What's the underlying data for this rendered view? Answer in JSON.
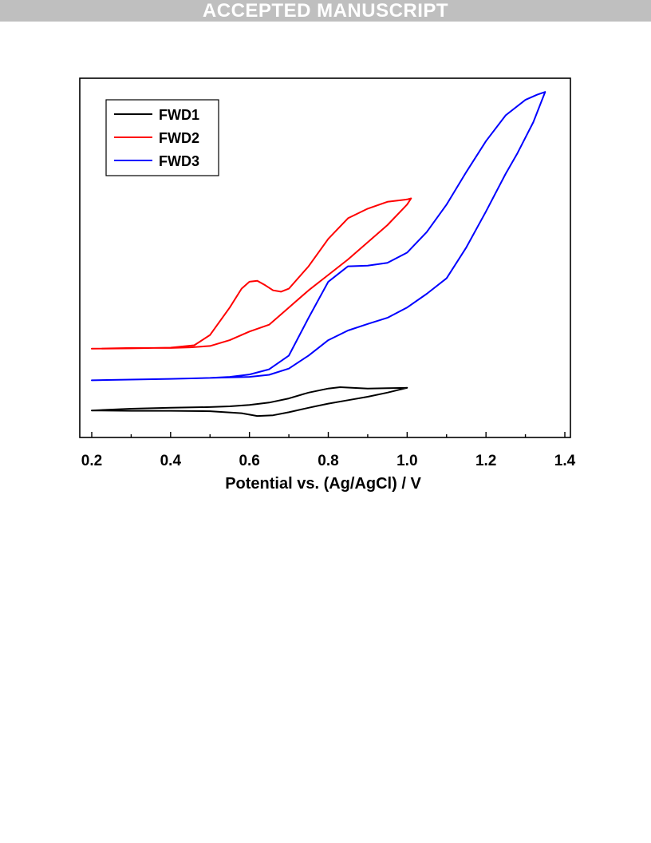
{
  "banner": {
    "text": "ACCEPTED MANUSCRIPT"
  },
  "chart_data": {
    "type": "line",
    "title": "",
    "xlabel": "Potential vs. (Ag/AgCl) / V",
    "ylabel": "",
    "xlim": [
      0.2,
      1.4
    ],
    "ylim": [
      0,
      100
    ],
    "xticks": [
      "0.2",
      "0.4",
      "0.6",
      "0.8",
      "1.0",
      "1.2",
      "1.4"
    ],
    "y_axis_ticks_labeled": false,
    "grid": false,
    "legend_position": "top-left",
    "series": [
      {
        "name": "FWD1",
        "color": "#000000",
        "x": [
          0.2,
          0.3,
          0.4,
          0.5,
          0.55,
          0.6,
          0.65,
          0.7,
          0.75,
          0.8,
          0.83,
          0.86,
          0.9,
          0.95,
          1.0,
          0.95,
          0.9,
          0.85,
          0.8,
          0.75,
          0.7,
          0.66,
          0.62,
          0.58,
          0.5,
          0.4,
          0.3,
          0.2
        ],
        "y": [
          6.0,
          6.5,
          6.8,
          7.0,
          7.2,
          7.6,
          8.3,
          9.5,
          11.2,
          12.4,
          12.8,
          12.6,
          12.4,
          12.5,
          12.6,
          11.2,
          10.0,
          9.0,
          8.0,
          6.8,
          5.5,
          4.6,
          4.4,
          5.2,
          5.8,
          5.9,
          5.9,
          6.0
        ]
      },
      {
        "name": "FWD2",
        "color": "#ff0000",
        "x": [
          0.2,
          0.3,
          0.4,
          0.46,
          0.5,
          0.55,
          0.58,
          0.6,
          0.62,
          0.64,
          0.66,
          0.68,
          0.7,
          0.75,
          0.8,
          0.85,
          0.9,
          0.95,
          1.0,
          1.01,
          1.0,
          0.95,
          0.9,
          0.85,
          0.8,
          0.75,
          0.7,
          0.65,
          0.6,
          0.55,
          0.5,
          0.45,
          0.4,
          0.3,
          0.2
        ],
        "y": [
          24.0,
          24.1,
          24.3,
          25.0,
          28.0,
          36.0,
          41.5,
          43.5,
          43.8,
          42.5,
          41.0,
          40.6,
          41.5,
          48.0,
          56.0,
          62.0,
          64.8,
          66.8,
          67.5,
          67.8,
          66.0,
          60.0,
          55.0,
          50.0,
          45.5,
          41.0,
          36.0,
          31.0,
          29.0,
          26.5,
          24.8,
          24.4,
          24.2,
          24.2,
          24.0
        ]
      },
      {
        "name": "FWD3",
        "color": "#0000ff",
        "x": [
          0.2,
          0.4,
          0.5,
          0.55,
          0.6,
          0.65,
          0.7,
          0.75,
          0.8,
          0.85,
          0.9,
          0.95,
          1.0,
          1.05,
          1.1,
          1.15,
          1.2,
          1.25,
          1.3,
          1.33,
          1.35,
          1.32,
          1.28,
          1.25,
          1.2,
          1.15,
          1.1,
          1.05,
          1.0,
          0.95,
          0.9,
          0.85,
          0.8,
          0.75,
          0.7,
          0.65,
          0.6,
          0.5,
          0.4,
          0.2
        ],
        "y": [
          14.8,
          15.2,
          15.5,
          15.8,
          16.5,
          18.0,
          22.0,
          33.0,
          43.5,
          48.0,
          48.2,
          49.0,
          52.0,
          58.0,
          66.0,
          75.5,
          84.5,
          92.0,
          96.5,
          98.0,
          98.8,
          90.0,
          81.0,
          75.0,
          64.0,
          53.5,
          44.5,
          40.0,
          36.0,
          33.0,
          31.2,
          29.3,
          26.5,
          22.0,
          18.2,
          16.4,
          15.8,
          15.5,
          15.2,
          14.8
        ]
      }
    ]
  }
}
